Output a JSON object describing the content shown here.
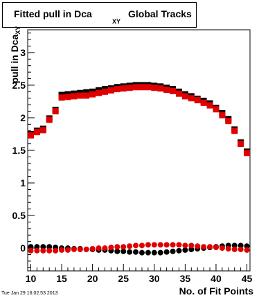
{
  "chart_data": {
    "type": "scatter",
    "title": "Fitted pull in Dca",
    "title_subscript": "XY",
    "title_tail": "Global Tracks",
    "xlabel": "No. of Fit Points",
    "ylabel": "pull in Dca",
    "ylabel_subscript": "XY",
    "xlim": [
      9.5,
      45.5
    ],
    "ylim": [
      -0.35,
      3.35
    ],
    "x_ticks": [
      10,
      15,
      20,
      25,
      30,
      35,
      40,
      45
    ],
    "y_ticks": [
      0,
      0.5,
      1,
      1.5,
      2,
      2.5,
      3
    ],
    "y_tick_labels": [
      "0",
      "0.5",
      "1",
      "1.5",
      "2",
      "2.5",
      "3"
    ],
    "grid": false,
    "series": [
      {
        "color": "#000000",
        "x": [
          10,
          11,
          12,
          13,
          14,
          15,
          16,
          17,
          18,
          19,
          20,
          21,
          22,
          23,
          24,
          25,
          26,
          27,
          28,
          29,
          30,
          31,
          32,
          33,
          34,
          35,
          36,
          37,
          38,
          39,
          40,
          41,
          42,
          43,
          44,
          45
        ],
        "y": [
          1.75,
          1.8,
          1.83,
          1.99,
          2.12,
          2.35,
          2.36,
          2.37,
          2.38,
          2.39,
          2.4,
          2.42,
          2.44,
          2.45,
          2.47,
          2.48,
          2.49,
          2.5,
          2.5,
          2.5,
          2.49,
          2.48,
          2.46,
          2.44,
          2.4,
          2.36,
          2.33,
          2.29,
          2.26,
          2.22,
          2.15,
          2.07,
          1.98,
          1.82,
          1.62,
          1.48
        ]
      },
      {
        "color": "#e00000",
        "x": [
          10,
          11,
          12,
          13,
          14,
          15,
          16,
          17,
          18,
          19,
          20,
          21,
          22,
          23,
          24,
          25,
          26,
          27,
          28,
          29,
          30,
          31,
          32,
          33,
          34,
          35,
          36,
          37,
          38,
          39,
          40,
          41,
          42,
          43,
          44,
          45
        ],
        "y": [
          1.73,
          1.78,
          1.81,
          1.97,
          2.1,
          2.31,
          2.32,
          2.33,
          2.34,
          2.34,
          2.36,
          2.38,
          2.4,
          2.42,
          2.44,
          2.45,
          2.46,
          2.47,
          2.47,
          2.47,
          2.46,
          2.45,
          2.43,
          2.41,
          2.37,
          2.33,
          2.3,
          2.27,
          2.23,
          2.19,
          2.13,
          2.04,
          1.95,
          1.8,
          1.6,
          1.46
        ]
      },
      {
        "color": "#000000",
        "x": [
          10,
          11,
          12,
          13,
          14,
          15,
          16,
          17,
          18,
          19,
          20,
          21,
          22,
          23,
          24,
          25,
          26,
          27,
          28,
          29,
          30,
          31,
          32,
          33,
          34,
          35,
          36,
          37,
          38,
          39,
          40,
          41,
          42,
          43,
          44,
          45
        ],
        "y": [
          0.02,
          0.02,
          0.02,
          0.02,
          0.01,
          0.0,
          0.0,
          -0.01,
          -0.01,
          -0.02,
          -0.02,
          -0.03,
          -0.03,
          -0.04,
          -0.05,
          -0.05,
          -0.06,
          -0.06,
          -0.07,
          -0.07,
          -0.07,
          -0.07,
          -0.06,
          -0.05,
          -0.04,
          -0.03,
          -0.02,
          -0.01,
          0.0,
          0.01,
          0.02,
          0.03,
          0.04,
          0.04,
          0.04,
          0.03
        ]
      },
      {
        "color": "#e00000",
        "x": [
          10,
          11,
          12,
          13,
          14,
          15,
          16,
          17,
          18,
          19,
          20,
          21,
          22,
          23,
          24,
          25,
          26,
          27,
          28,
          29,
          30,
          31,
          32,
          33,
          34,
          35,
          36,
          37,
          38,
          39,
          40,
          41,
          42,
          43,
          44,
          45
        ],
        "y": [
          -0.04,
          -0.04,
          -0.04,
          -0.04,
          -0.04,
          -0.03,
          -0.03,
          -0.02,
          -0.02,
          -0.02,
          -0.01,
          0.0,
          0.0,
          0.01,
          0.02,
          0.02,
          0.03,
          0.04,
          0.04,
          0.05,
          0.05,
          0.05,
          0.05,
          0.05,
          0.05,
          0.04,
          0.04,
          0.03,
          0.02,
          0.02,
          0.01,
          0.0,
          -0.01,
          -0.02,
          -0.02,
          -0.03
        ]
      }
    ]
  },
  "footer": {
    "timestamp": "Tue Jan 29 16:02:53 2013"
  }
}
